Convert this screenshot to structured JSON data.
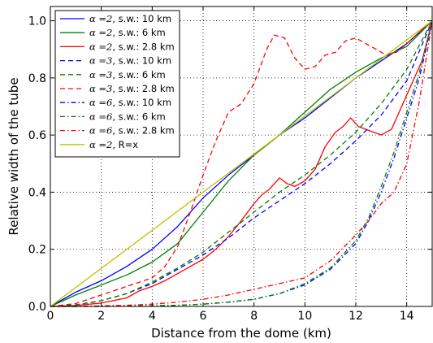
{
  "chart_data": {
    "type": "line",
    "title": "",
    "xlabel": "Distance from the dome (km)",
    "ylabel": "Relative width of the tube",
    "xlim": [
      0,
      15
    ],
    "ylim": [
      0,
      1.05
    ],
    "xticks": [
      "0",
      "2",
      "4",
      "6",
      "8",
      "10",
      "12",
      "14"
    ],
    "yticks": [
      "0.0",
      "0.2",
      "0.4",
      "0.6",
      "0.8",
      "1.0"
    ],
    "grid": true,
    "legend_position": "top-left",
    "series": [
      {
        "name": "α=2, s.w.: 10 km",
        "label_alpha": "α =2",
        "label_rest": ", s.w.: 10 km",
        "color": "#0000ff",
        "dash": "solid",
        "x": [
          0,
          1,
          2,
          3,
          4,
          5,
          6,
          7,
          8,
          9,
          10,
          11,
          12,
          13,
          14,
          15
        ],
        "y": [
          0,
          0.05,
          0.09,
          0.14,
          0.2,
          0.28,
          0.38,
          0.46,
          0.53,
          0.6,
          0.66,
          0.73,
          0.8,
          0.86,
          0.92,
          1.0
        ]
      },
      {
        "name": "α=2, s.w.: 6 km",
        "label_alpha": "α =2",
        "label_rest": ", s.w.: 6 km",
        "color": "#008000",
        "dash": "solid",
        "x": [
          0,
          1,
          2,
          3,
          4,
          5,
          6,
          7,
          8,
          9,
          10,
          11,
          12,
          13,
          14,
          15
        ],
        "y": [
          0,
          0.04,
          0.075,
          0.11,
          0.155,
          0.22,
          0.33,
          0.44,
          0.53,
          0.6,
          0.68,
          0.76,
          0.82,
          0.87,
          0.91,
          1.0
        ]
      },
      {
        "name": "α=2, s.w.: 2.8 km",
        "label_alpha": "α =2",
        "label_rest": ", s.w.: 2.8 km",
        "color": "#ff0000",
        "dash": "solid",
        "x": [
          0,
          1,
          2,
          3,
          3.5,
          4,
          4.5,
          5,
          5.5,
          6,
          6.5,
          7,
          7.5,
          8,
          8.3,
          8.6,
          9,
          9.3,
          9.6,
          10,
          10.4,
          10.8,
          11.2,
          11.5,
          11.8,
          12.1,
          12.4,
          12.7,
          13,
          13.4,
          13.7,
          14,
          14.3,
          14.6,
          15
        ],
        "y": [
          0,
          0.003,
          0.012,
          0.03,
          0.055,
          0.07,
          0.09,
          0.115,
          0.14,
          0.165,
          0.2,
          0.245,
          0.3,
          0.36,
          0.39,
          0.41,
          0.45,
          0.43,
          0.42,
          0.44,
          0.48,
          0.56,
          0.61,
          0.63,
          0.66,
          0.63,
          0.62,
          0.61,
          0.6,
          0.62,
          0.68,
          0.74,
          0.8,
          0.86,
          1.0
        ]
      },
      {
        "name": "α=3, s.w.: 10 km",
        "label_alpha": "α =3",
        "label_rest": ", s.w.: 10 km",
        "color": "#0000ff",
        "dash": "dashed",
        "x": [
          0,
          1,
          2,
          3,
          4,
          5,
          6,
          7,
          8,
          9,
          10,
          11,
          12,
          13,
          14,
          15
        ],
        "y": [
          0,
          0.005,
          0.02,
          0.045,
          0.08,
          0.13,
          0.18,
          0.24,
          0.31,
          0.37,
          0.43,
          0.5,
          0.58,
          0.67,
          0.79,
          1.0
        ]
      },
      {
        "name": "α=3, s.w.: 6 km",
        "label_alpha": "α =3",
        "label_rest": ", s.w.: 6 km",
        "color": "#008000",
        "dash": "dashed",
        "x": [
          0,
          1,
          2,
          3,
          4,
          5,
          6,
          7,
          8,
          9,
          10,
          11,
          12,
          13,
          14,
          15
        ],
        "y": [
          0,
          0.005,
          0.02,
          0.045,
          0.085,
          0.135,
          0.19,
          0.26,
          0.33,
          0.4,
          0.46,
          0.53,
          0.61,
          0.71,
          0.83,
          1.0
        ]
      },
      {
        "name": "α=3, s.w.: 2.8 km",
        "label_alpha": "α =3",
        "label_rest": ", s.w.: 2.8 km",
        "color": "#ff0000",
        "dash": "dashed",
        "x": [
          0,
          1,
          2,
          3,
          4,
          4.5,
          5,
          5.5,
          6,
          6.5,
          7,
          7.5,
          8,
          8.5,
          8.8,
          9.2,
          9.6,
          10,
          10.4,
          10.8,
          11.2,
          11.6,
          12,
          12.4,
          12.8,
          13.2,
          13.6,
          14,
          14.5,
          15
        ],
        "y": [
          0,
          0.01,
          0.04,
          0.07,
          0.1,
          0.14,
          0.21,
          0.33,
          0.46,
          0.58,
          0.68,
          0.71,
          0.78,
          0.9,
          0.95,
          0.94,
          0.87,
          0.83,
          0.84,
          0.88,
          0.89,
          0.93,
          0.94,
          0.92,
          0.9,
          0.88,
          0.89,
          0.92,
          0.96,
          1.0
        ]
      },
      {
        "name": "α=6, s.w.: 10 km",
        "label_alpha": "α =6",
        "label_rest": ", s.w.: 10 km",
        "color": "#0000ff",
        "dash": "dashdot",
        "x": [
          0,
          1,
          2,
          3,
          4,
          5,
          6,
          7,
          8,
          9,
          10,
          11,
          12,
          12.5,
          13,
          13.5,
          14,
          14.5,
          15
        ],
        "y": [
          0,
          0,
          0,
          0.001,
          0.002,
          0.004,
          0.008,
          0.015,
          0.025,
          0.045,
          0.075,
          0.13,
          0.22,
          0.3,
          0.4,
          0.52,
          0.66,
          0.8,
          1.0
        ]
      },
      {
        "name": "α=6, s.w.: 6 km",
        "label_alpha": "α =6",
        "label_rest": ", s.w.: 6 km",
        "color": "#008000",
        "dash": "dashdot",
        "x": [
          0,
          1,
          2,
          3,
          4,
          5,
          6,
          7,
          8,
          9,
          10,
          11,
          12,
          12.5,
          13,
          13.5,
          14,
          14.5,
          15
        ],
        "y": [
          0,
          0,
          0,
          0.001,
          0.002,
          0.004,
          0.008,
          0.015,
          0.025,
          0.045,
          0.08,
          0.135,
          0.23,
          0.31,
          0.42,
          0.54,
          0.68,
          0.82,
          1.0
        ]
      },
      {
        "name": "α=6, s.w.: 2.8 km",
        "label_alpha": "α =6",
        "label_rest": ", s.w.: 2.8 km",
        "color": "#ff0000",
        "dash": "dashdot",
        "x": [
          0,
          1,
          2,
          3,
          4,
          5,
          6,
          7,
          8,
          9,
          10,
          11,
          12,
          12.5,
          13,
          13.5,
          14,
          14.5,
          15
        ],
        "y": [
          0,
          0,
          0.002,
          0.004,
          0.008,
          0.015,
          0.025,
          0.04,
          0.06,
          0.08,
          0.1,
          0.16,
          0.25,
          0.3,
          0.36,
          0.4,
          0.5,
          0.72,
          1.0
        ]
      },
      {
        "name": "α=2, R=x",
        "label_alpha": "α =2",
        "label_rest": ", R=x",
        "color": "#bfbf00",
        "dash": "solid",
        "x": [
          0,
          15
        ],
        "y": [
          0,
          1.0
        ]
      }
    ]
  }
}
